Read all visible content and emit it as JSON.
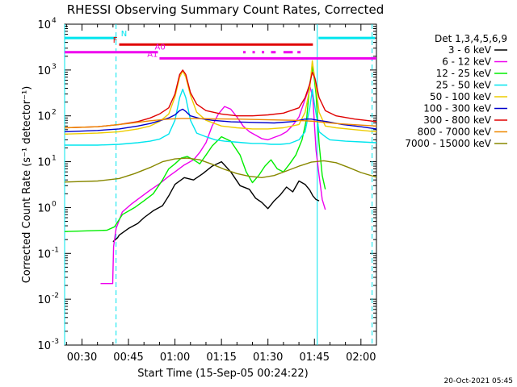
{
  "chart_data": {
    "type": "line",
    "title": "RHESSI Observing Summary Count Rates, Corrected",
    "xlabel": "Start Time (15-Sep-05 00:24:22)",
    "ylabel": "Corrected Count Rate (s⁻¹ detector⁻¹)",
    "yscale": "log",
    "ylim": [
      0.001,
      10000
    ],
    "xlim_minutes": [
      24.4,
      125.0
    ],
    "x_ticks": [
      {
        "minute": 30,
        "label": "00:30"
      },
      {
        "minute": 45,
        "label": "00:45"
      },
      {
        "minute": 60,
        "label": "01:00"
      },
      {
        "minute": 75,
        "label": "01:15"
      },
      {
        "minute": 90,
        "label": "01:30"
      },
      {
        "minute": 105,
        "label": "01:45"
      },
      {
        "minute": 120,
        "label": "02:00"
      }
    ],
    "y_ticks": [
      {
        "exp": -3,
        "value": 0.001
      },
      {
        "exp": -2,
        "value": 0.01
      },
      {
        "exp": -1,
        "value": 0.1
      },
      {
        "exp": 0,
        "value": 1
      },
      {
        "exp": 1,
        "value": 10
      },
      {
        "exp": 2,
        "value": 100
      },
      {
        "exp": 3,
        "value": 1000
      },
      {
        "exp": 4,
        "value": 10000
      }
    ],
    "legend_title": "Det 1,3,4,5,6,9",
    "vertical_lines": [
      {
        "minute": 24.4,
        "style": "solid",
        "color": "#00e5ee"
      },
      {
        "minute": 41.0,
        "style": "dashed",
        "color": "#00e5ee"
      },
      {
        "minute": 105.9,
        "style": "solid",
        "color": "#00e5ee"
      },
      {
        "minute": 123.6,
        "style": "dashed",
        "color": "#00e5ee"
      }
    ],
    "flag_bars": [
      {
        "label": "N",
        "color": "#00e5ee",
        "y": 5000,
        "segments": [
          [
            24.4,
            41.0
          ],
          [
            106.3,
            124.5
          ]
        ]
      },
      {
        "label": "F",
        "color": "#e00000",
        "y": 3600,
        "segments": [
          [
            42.0,
            104.5
          ]
        ]
      },
      {
        "label": "A0",
        "color": "#ee00ee",
        "y": 2450,
        "segments": [
          [
            24.4,
            54.5
          ],
          [
            82.0,
            82.8
          ],
          [
            85.0,
            85.8
          ],
          [
            88.0,
            88.8
          ],
          [
            91.0,
            92.5
          ],
          [
            95.0,
            98.0
          ],
          [
            99.5,
            100.5
          ]
        ]
      },
      {
        "label": "A1",
        "color": "#ee00ee",
        "y": 1800,
        "segments": [
          [
            55.0,
            125.0
          ]
        ]
      }
    ],
    "series": [
      {
        "name": "3 - 6 keV",
        "color": "#000000",
        "x": [
          40.0,
          40.8,
          41.5,
          42.0,
          45,
          48,
          50,
          53,
          56,
          58,
          60,
          63,
          66,
          69,
          72,
          75,
          78,
          81,
          84,
          86,
          88,
          90,
          92,
          94,
          96,
          98,
          100,
          102,
          103.5,
          104.5,
          105.5,
          106.5
        ],
        "y": [
          0.18,
          0.2,
          0.22,
          0.25,
          0.35,
          0.45,
          0.6,
          0.85,
          1.1,
          1.8,
          3.2,
          4.5,
          4.0,
          5.5,
          8.0,
          10.0,
          6.0,
          3.0,
          2.5,
          1.6,
          1.3,
          0.95,
          1.4,
          1.9,
          2.8,
          2.2,
          3.8,
          3.2,
          2.4,
          1.8,
          1.5,
          1.4
        ]
      },
      {
        "name": "6 - 12 keV",
        "color": "#ee00ee",
        "x": [
          36.0,
          39.9,
          40.2,
          41,
          43,
          46,
          49,
          52,
          55,
          58,
          60,
          63,
          66,
          68,
          70,
          72,
          74,
          76,
          78,
          80,
          82,
          84,
          86,
          88,
          90,
          92,
          94,
          96,
          98,
          100,
          102,
          103.5,
          104.5,
          105.5,
          106.5,
          107.5,
          108.5
        ],
        "y": [
          0.022,
          0.022,
          0.14,
          0.35,
          0.8,
          1.2,
          1.7,
          2.4,
          3.3,
          4.8,
          6.0,
          8.5,
          11.0,
          16.0,
          26.0,
          60.0,
          110.0,
          160.0,
          140.0,
          95.0,
          60.0,
          45.0,
          38.0,
          32.0,
          30.0,
          34.0,
          38.0,
          45.0,
          62.0,
          95.0,
          230.0,
          450.0,
          250.0,
          18.0,
          5.0,
          1.5,
          0.9
        ]
      },
      {
        "name": "12 - 25 keV",
        "color": "#00ee00",
        "x": [
          24.4,
          38,
          40.5,
          43,
          47,
          50,
          53,
          56,
          58,
          60,
          62,
          64,
          66,
          68,
          70,
          72,
          75,
          78,
          81,
          83,
          85,
          87,
          89,
          91,
          93,
          95,
          97,
          99,
          101,
          102.5,
          103.5,
          104.5,
          105.5,
          106.5,
          107.5,
          108.5
        ],
        "y": [
          0.3,
          0.32,
          0.38,
          0.7,
          1.0,
          1.4,
          2.0,
          4.0,
          7.0,
          9.0,
          12.0,
          13.0,
          11.0,
          9.0,
          14.0,
          22.0,
          35.0,
          28.0,
          14.0,
          6.0,
          3.5,
          5.0,
          8.0,
          11.0,
          7.0,
          6.0,
          9.0,
          14.0,
          30.0,
          90.0,
          500.0,
          1200.0,
          300.0,
          25.0,
          5.0,
          2.5
        ]
      },
      {
        "name": "25 - 50 keV",
        "color": "#00e5ee",
        "x": [
          24.4,
          35,
          42,
          48,
          52,
          55,
          58,
          60,
          61.5,
          62.5,
          63.5,
          65,
          67,
          70,
          73,
          76,
          79,
          82,
          85,
          88,
          91,
          94,
          97,
          100,
          102,
          103.5,
          104.3,
          105.2,
          106.5,
          108.5,
          110,
          115,
          120,
          125
        ],
        "y": [
          23,
          23,
          24,
          26,
          28,
          31,
          40,
          80,
          250,
          380,
          250,
          80,
          42,
          35,
          30,
          28,
          27,
          26,
          25,
          25,
          24,
          24,
          25,
          30,
          45,
          150,
          380,
          150,
          45,
          35,
          30,
          28,
          27,
          26
        ]
      },
      {
        "name": "50 - 100 keV",
        "color": "#eecc00",
        "x": [
          24.4,
          35,
          42,
          48,
          52,
          55,
          58,
          60,
          61.5,
          62.5,
          63.5,
          65,
          67,
          70,
          75,
          80,
          85,
          90,
          95,
          100,
          102,
          103.5,
          104.3,
          105.2,
          106.5,
          108.5,
          112,
          118,
          125
        ],
        "y": [
          40,
          42,
          45,
          52,
          60,
          75,
          110,
          260,
          700,
          950,
          700,
          280,
          120,
          80,
          60,
          55,
          52,
          52,
          55,
          65,
          120,
          400,
          1600,
          600,
          120,
          60,
          55,
          50,
          45
        ]
      },
      {
        "name": "100 - 300 keV",
        "color": "#0000cc",
        "x": [
          24.4,
          35,
          42,
          48,
          52,
          55,
          58,
          60,
          61.5,
          62.5,
          63.5,
          65,
          68,
          72,
          78,
          85,
          92,
          98,
          102,
          104,
          106,
          109,
          114,
          120,
          125
        ],
        "y": [
          45,
          48,
          52,
          60,
          68,
          78,
          90,
          105,
          130,
          140,
          125,
          100,
          88,
          80,
          74,
          72,
          70,
          75,
          85,
          85,
          80,
          75,
          65,
          58,
          52
        ]
      },
      {
        "name": "300 - 800 keV",
        "color": "#e00000",
        "x": [
          24.4,
          35,
          42,
          48,
          52,
          55,
          58,
          60,
          61.5,
          62.5,
          63.5,
          65,
          67,
          70,
          75,
          80,
          85,
          90,
          95,
          100,
          102,
          103.5,
          104.3,
          105.2,
          106.5,
          108.5,
          112,
          118,
          125
        ],
        "y": [
          55,
          58,
          65,
          75,
          90,
          110,
          150,
          300,
          800,
          1000,
          800,
          320,
          180,
          130,
          110,
          100,
          100,
          105,
          115,
          150,
          250,
          500,
          900,
          650,
          250,
          130,
          100,
          85,
          75
        ]
      },
      {
        "name": "800 - 7000 keV",
        "color": "#ee8800",
        "x": [
          24.4,
          35,
          45,
          52,
          58,
          62,
          66,
          72,
          80,
          90,
          98,
          102,
          105,
          108,
          112,
          118,
          125
        ],
        "y": [
          55,
          58,
          68,
          78,
          85,
          88,
          88,
          86,
          85,
          82,
          80,
          78,
          76,
          72,
          68,
          64,
          60
        ]
      },
      {
        "name": "7000 - 15000 keV",
        "color": "#888800",
        "x": [
          24.4,
          35,
          42,
          47,
          52,
          56,
          60,
          64,
          68,
          72,
          76,
          80,
          84,
          88,
          92,
          96,
          100,
          104,
          108,
          112,
          116,
          120,
          125
        ],
        "y": [
          3.6,
          3.8,
          4.3,
          5.5,
          7.5,
          10.0,
          11.5,
          12.0,
          11.0,
          8.8,
          6.8,
          5.5,
          4.8,
          4.5,
          5.0,
          6.3,
          8.0,
          9.8,
          10.5,
          9.5,
          7.5,
          5.8,
          4.6
        ]
      }
    ]
  },
  "footer": {
    "date_stamp": "20-Oct-2021 05:45"
  }
}
